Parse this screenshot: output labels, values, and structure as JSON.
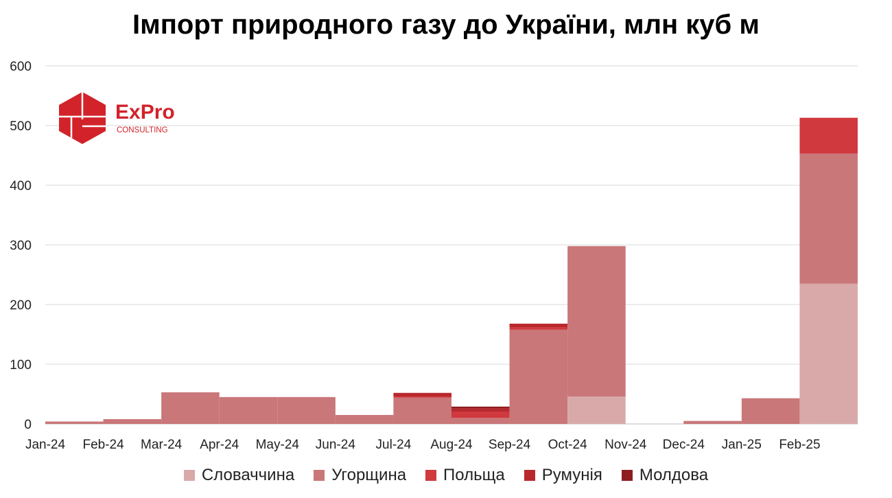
{
  "chart_data": {
    "type": "bar",
    "stacked": true,
    "title": "Імпорт природного газу до України, млн куб м",
    "xlabel": "",
    "ylabel": "",
    "ylim": [
      0,
      600
    ],
    "yticks": [
      "0",
      "100",
      "200",
      "300",
      "400",
      "500",
      "600"
    ],
    "grid": true,
    "legend_position": "bottom",
    "categories": [
      "Jan-24",
      "Feb-24",
      "Mar-24",
      "Apr-24",
      "May-24",
      "Jun-24",
      "Jul-24",
      "Aug-24",
      "Sep-24",
      "Oct-24",
      "Nov-24",
      "Dec-24",
      "Jan-25",
      "Feb-25"
    ],
    "series": [
      {
        "name": "Словаччина",
        "color": "#d9a9aa",
        "values": [
          0,
          0,
          0,
          0,
          0,
          0,
          0,
          0,
          0,
          46,
          0,
          0,
          0,
          235
        ]
      },
      {
        "name": "Угорщина",
        "color": "#c97779",
        "values": [
          4,
          8,
          53,
          45,
          45,
          15,
          44,
          10,
          158,
          252,
          0,
          5,
          43,
          218
        ]
      },
      {
        "name": "Польща",
        "color": "#d0393e",
        "values": [
          0,
          0,
          0,
          0,
          0,
          0,
          2,
          10,
          4,
          0,
          0,
          0,
          0,
          60
        ]
      },
      {
        "name": "Румунія",
        "color": "#b8282d",
        "values": [
          0,
          0,
          0,
          0,
          0,
          0,
          6,
          6,
          6,
          0,
          0,
          0,
          0,
          0
        ]
      },
      {
        "name": "Молдова",
        "color": "#8e1c20",
        "values": [
          0,
          0,
          0,
          0,
          0,
          0,
          0,
          3,
          0,
          0,
          0,
          0,
          0,
          0
        ]
      }
    ]
  },
  "logo": {
    "name": "ExPro",
    "subtitle": "CONSULTING",
    "color": "#d2232a"
  }
}
